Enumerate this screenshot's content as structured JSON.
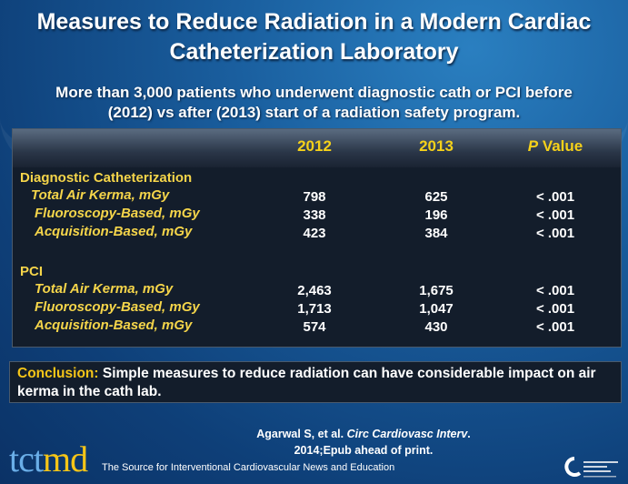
{
  "title": [
    "Measures to Reduce Radiation in a Modern Cardiac",
    "Catheterization Laboratory"
  ],
  "subtitle": [
    "More than 3,000 patients who underwent diagnostic cath or PCI before",
    "(2012) vs after (2013) start of a radiation safety program."
  ],
  "table": {
    "headers": {
      "c2012": "2012",
      "c2013": "2013",
      "p_italic": "P",
      "p_rest": " Value"
    },
    "sections": [
      {
        "label": "Diagnostic Catheterization",
        "rows": [
          {
            "label": "Total Air Kerma, mGy",
            "v2012": "798",
            "v2013": "625",
            "p": "< .001"
          },
          {
            "label": "Fluoroscopy-Based, mGy",
            "v2012": "338",
            "v2013": "196",
            "p": "< .001"
          },
          {
            "label": "Acquisition-Based, mGy",
            "v2012": "423",
            "v2013": "384",
            "p": "< .001"
          }
        ]
      },
      {
        "label": "PCI",
        "rows": [
          {
            "label": "Total Air Kerma, mGy",
            "v2012": "2,463",
            "v2013": "1,675",
            "p": "< .001"
          },
          {
            "label": "Fluoroscopy-Based, mGy",
            "v2012": "1,713",
            "v2013": "1,047",
            "p": "< .001"
          },
          {
            "label": "Acquisition-Based, mGy",
            "v2012": "574",
            "v2013": "430",
            "p": "< .001"
          }
        ]
      }
    ]
  },
  "conclusion": {
    "key": "Conclusion:",
    "text": " Simple measures to reduce radiation can have considerable impact on air kerma in the cath lab."
  },
  "citation": {
    "authors": "Agarwal S, et al. ",
    "journal": "Circ Cardiovasc Interv",
    "period": ".",
    "line2": "2014;Epub ahead of print."
  },
  "footer": {
    "logo_a": "tct",
    "logo_b": "md",
    "tagline": "The Source for Interventional Cardiovascular News and Education",
    "crf_logo": "CARDIOVASCULAR RESEARCH FOUNDATION"
  },
  "colors": {
    "accent": "#f5c518",
    "background": "#1a5f9f",
    "table_bg": "#131d2b"
  }
}
